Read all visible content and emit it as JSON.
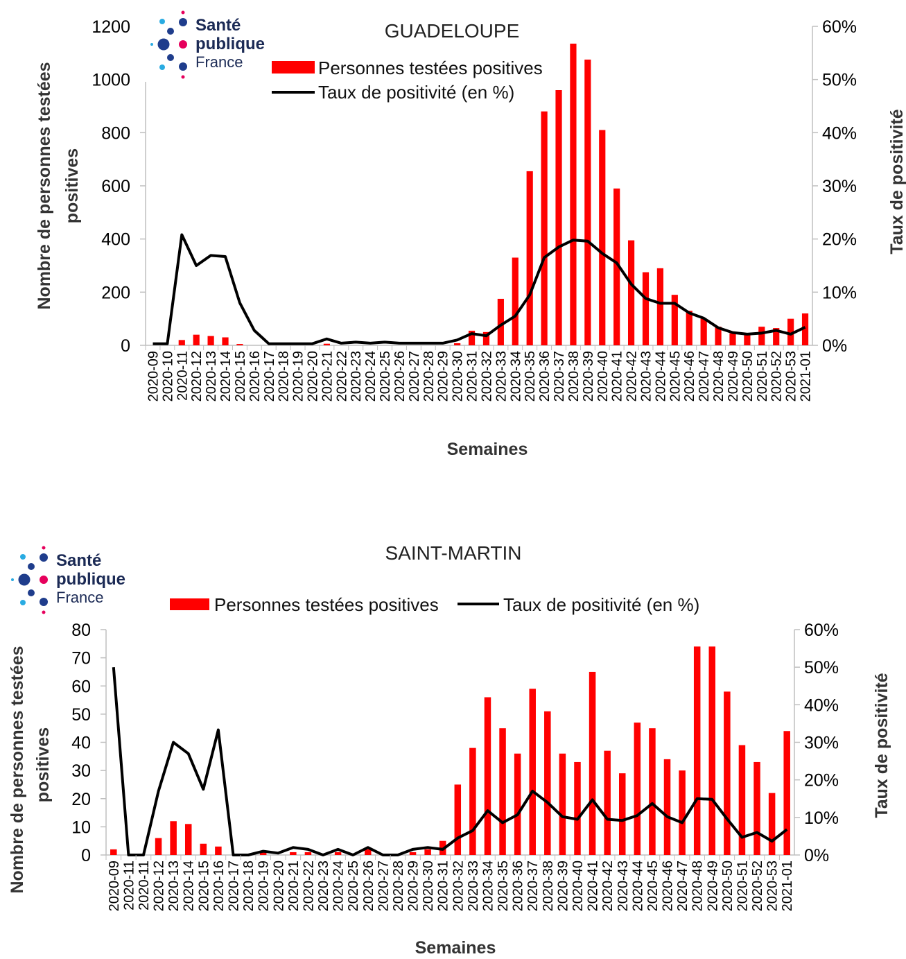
{
  "logo": {
    "line1": "Santé",
    "line2": "publique",
    "line3": "France"
  },
  "chart_data": [
    {
      "type": "bar",
      "title": "GUADELOUPE",
      "xlabel": "Semaines",
      "ylabel": "Nombre de personnes testées positives",
      "y2label": "Taux de positivité",
      "ylim": [
        0,
        1200
      ],
      "y2lim": [
        0,
        60
      ],
      "yticks": [
        "0",
        "200",
        "400",
        "600",
        "800",
        "1000",
        "1200"
      ],
      "y2ticks": [
        "0%",
        "10%",
        "20%",
        "30%",
        "40%",
        "50%",
        "60%"
      ],
      "legend": [
        "Personnes testées positives",
        "Taux de positivité (en %)"
      ],
      "categories": [
        "2020-09",
        "2020-10",
        "2020-11",
        "2020-12",
        "2020-13",
        "2020-14",
        "2020-15",
        "2020-16",
        "2020-17",
        "2020-18",
        "2020-19",
        "2020-20",
        "2020-21",
        "2020-22",
        "2020-23",
        "2020-24",
        "2020-25",
        "2020-26",
        "2020-27",
        "2020-28",
        "2020-29",
        "2020-30",
        "2020-31",
        "2020-32",
        "2020-33",
        "2020-34",
        "2020-35",
        "2020-36",
        "2020-37",
        "2020-38",
        "2020-39",
        "2020-40",
        "2020-41",
        "2020-42",
        "2020-43",
        "2020-44",
        "2020-45",
        "2020-46",
        "2020-47",
        "2020-48",
        "2020-49",
        "2020-50",
        "2020-51",
        "2020-52",
        "2020-53",
        "2021-01"
      ],
      "series": [
        {
          "name": "Personnes testées positives",
          "kind": "bar",
          "axis": "left",
          "values": [
            0,
            0,
            20,
            40,
            35,
            30,
            5,
            0,
            0,
            0,
            0,
            0,
            6,
            0,
            0,
            0,
            0,
            0,
            0,
            0,
            0,
            8,
            55,
            50,
            175,
            330,
            655,
            880,
            960,
            1135,
            1075,
            810,
            590,
            395,
            275,
            290,
            190,
            130,
            100,
            70,
            45,
            45,
            70,
            65,
            100,
            120
          ]
        },
        {
          "name": "Taux de positivité (en %)",
          "kind": "line",
          "axis": "right",
          "values": [
            0.3,
            0.3,
            20.8,
            15.0,
            16.9,
            16.7,
            8.0,
            2.8,
            0.3,
            0.3,
            0.3,
            0.3,
            1.2,
            0.4,
            0.6,
            0.4,
            0.6,
            0.4,
            0.4,
            0.4,
            0.4,
            1.0,
            2.2,
            1.8,
            3.8,
            5.5,
            9.5,
            16.5,
            18.5,
            19.8,
            19.6,
            17.3,
            15.5,
            11.5,
            8.8,
            7.9,
            7.9,
            6.1,
            5.1,
            3.3,
            2.4,
            2.1,
            2.3,
            2.8,
            2.1,
            3.4
          ]
        }
      ],
      "colors": {
        "bar": "#ff0000",
        "line": "#000000"
      }
    },
    {
      "type": "bar",
      "title": "SAINT-MARTIN",
      "xlabel": "Semaines",
      "ylabel": "Nombre  de personnes testées positives",
      "y2label": "Taux de positivité",
      "ylim": [
        0,
        80
      ],
      "y2lim": [
        0,
        60
      ],
      "yticks": [
        "0",
        "10",
        "20",
        "30",
        "40",
        "50",
        "60",
        "70",
        "80"
      ],
      "y2ticks": [
        "0%",
        "10%",
        "20%",
        "30%",
        "40%",
        "50%",
        "60%"
      ],
      "legend": [
        "Personnes testées positives",
        "Taux de positivité (en %)"
      ],
      "categories": [
        "2020-09",
        "2020-11",
        "2020-11",
        "2020-12",
        "2020-13",
        "2020-14",
        "2020-15",
        "2020-16",
        "2020-17",
        "2020-18",
        "2020-19",
        "2020-20",
        "2020-21",
        "2020-22",
        "2020-23",
        "2020-24",
        "2020-25",
        "2020-26",
        "2020-27",
        "2020-28",
        "2020-29",
        "2020-30",
        "2020-31",
        "2020-32",
        "2020-33",
        "2020-34",
        "2020-35",
        "2020-36",
        "2020-37",
        "2020-38",
        "2020-39",
        "2020-40",
        "2020-41",
        "2020-42",
        "2020-43",
        "2020-44",
        "2020-45",
        "2020-46",
        "2020-47",
        "2020-48",
        "2020-49",
        "2020-50",
        "2020-51",
        "2020-52",
        "2020-53",
        "2021-01"
      ],
      "series": [
        {
          "name": "Personnes testées positives",
          "kind": "bar",
          "axis": "left",
          "values": [
            2,
            0,
            0,
            6,
            12,
            11,
            4,
            3,
            0,
            0,
            1,
            0,
            1,
            1,
            0,
            1,
            0,
            2,
            0,
            0,
            1,
            2,
            5,
            25,
            38,
            56,
            45,
            36,
            59,
            51,
            36,
            33,
            65,
            37,
            29,
            47,
            45,
            34,
            30,
            74,
            74,
            58,
            39,
            33,
            22,
            44
          ]
        },
        {
          "name": "Taux de positivité (en %)",
          "kind": "line",
          "axis": "right",
          "values": [
            50,
            0,
            0,
            17,
            30,
            27,
            17.5,
            33.3,
            0,
            0,
            1,
            0.5,
            2,
            1.5,
            0,
            1.5,
            0,
            2,
            0,
            0,
            1.5,
            2,
            1.5,
            4.5,
            6.5,
            11.8,
            8.6,
            10.7,
            17,
            14,
            10.2,
            9.5,
            14.7,
            9.5,
            9.2,
            10.5,
            13.7,
            10.2,
            8.6,
            15,
            14.8,
            9.6,
            4.7,
            6,
            3.7,
            6.8
          ]
        }
      ],
      "colors": {
        "bar": "#ff0000",
        "line": "#000000"
      }
    }
  ]
}
